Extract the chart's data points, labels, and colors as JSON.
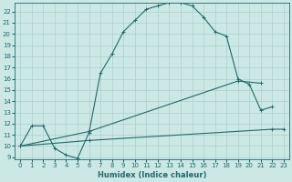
{
  "xlabel": "Humidex (Indice chaleur)",
  "xlim": [
    -0.5,
    23.5
  ],
  "ylim": [
    8.8,
    22.8
  ],
  "xticks": [
    0,
    1,
    2,
    3,
    4,
    5,
    6,
    7,
    8,
    9,
    10,
    11,
    12,
    13,
    14,
    15,
    16,
    17,
    18,
    19,
    20,
    21,
    22,
    23
  ],
  "yticks": [
    9,
    10,
    11,
    12,
    13,
    14,
    15,
    16,
    17,
    18,
    19,
    20,
    21,
    22
  ],
  "bg_color": "#cce8e5",
  "grid_color": "#aacfcc",
  "line_color": "#1d6b6b",
  "line1_x": [
    0,
    1,
    2,
    3,
    4,
    5,
    6,
    7,
    8,
    9,
    10,
    11,
    12,
    13,
    14,
    15,
    16,
    17,
    18,
    19,
    20,
    21,
    22
  ],
  "line1_y": [
    10,
    11.8,
    11.8,
    9.8,
    9.2,
    8.9,
    11.2,
    16.5,
    18.2,
    20.2,
    21.2,
    22.2,
    22.5,
    22.8,
    22.8,
    22.5,
    21.5,
    20.2,
    19.8,
    16.0,
    15.5,
    13.2,
    13.5
  ],
  "line2_x": [
    0,
    6,
    19,
    21
  ],
  "line2_y": [
    10,
    11.3,
    15.8,
    15.6
  ],
  "line3_x": [
    0,
    6,
    22,
    23
  ],
  "line3_y": [
    10,
    10.5,
    11.5,
    11.5
  ],
  "figsize": [
    3.2,
    2.0
  ],
  "dpi": 100
}
